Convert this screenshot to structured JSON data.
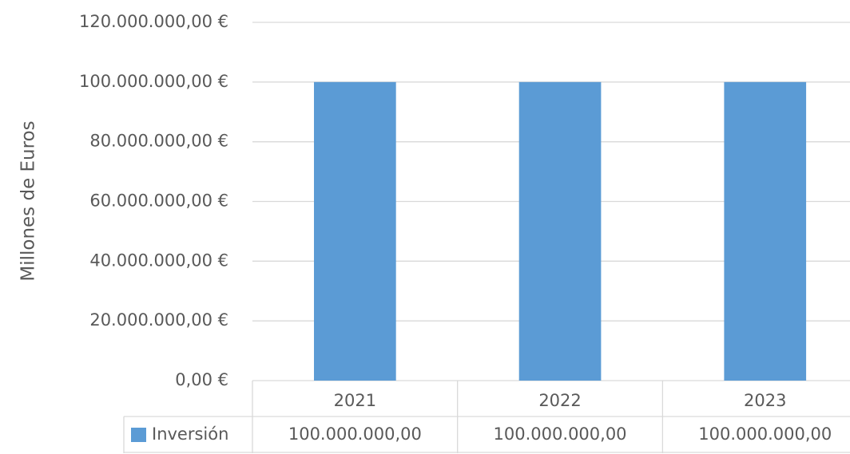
{
  "chart_data": {
    "type": "bar",
    "ylabel": "Millones de Euros",
    "categories": [
      "2021",
      "2022",
      "2023"
    ],
    "series": [
      {
        "name": "Inversión",
        "color": "#5b9bd5",
        "values": [
          100000000,
          100000000,
          100000000
        ],
        "value_labels": [
          "100.000.000,00",
          "100.000.000,00",
          "100.000.000,00"
        ]
      }
    ],
    "ylim": [
      0,
      120000000
    ],
    "yticks": [
      {
        "value": 0,
        "label": "0,00 €"
      },
      {
        "value": 20000000,
        "label": "20.000.000,00 €"
      },
      {
        "value": 40000000,
        "label": "40.000.000,00 €"
      },
      {
        "value": 60000000,
        "label": "60.000.000,00 €"
      },
      {
        "value": 80000000,
        "label": "80.000.000,00 €"
      },
      {
        "value": 100000000,
        "label": "100.000.000,00 €"
      },
      {
        "value": 120000000,
        "label": "120.000.000,00 €"
      }
    ],
    "grid": true,
    "data_table": true
  }
}
